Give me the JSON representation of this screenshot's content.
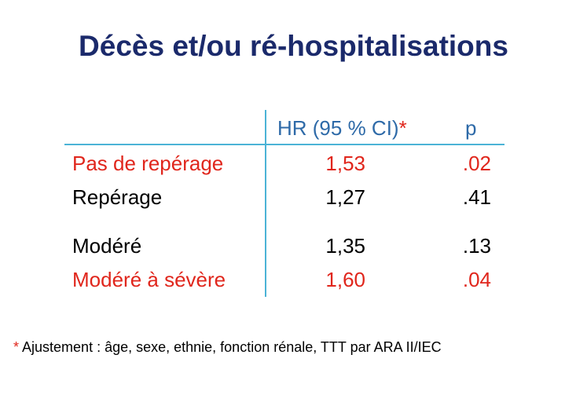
{
  "title": "Décès et/ou ré-hospitalisations",
  "table": {
    "headers": {
      "hr": "HR (95 % CI)",
      "hr_marker": "*",
      "p": "p"
    },
    "rows": [
      {
        "label": "Pas de repérage",
        "hr": "1,53",
        "p": ".02",
        "highlight": true
      },
      {
        "label": "Repérage",
        "hr": "1,27",
        "p": ".41",
        "highlight": false
      },
      {
        "label": "Modéré",
        "hr": "1,35",
        "p": ".13",
        "highlight": false
      },
      {
        "label": "Modéré à sévère",
        "hr": "1,60",
        "p": ".04",
        "highlight": true
      }
    ]
  },
  "footnote": {
    "marker": "*",
    "text": " Ajustement : âge, sexe, ethnie, fonction rénale, TTT par ARA II/IEC"
  },
  "colors": {
    "title": "#1b2a6b",
    "header": "#2e6aa8",
    "highlight": "#e0261c",
    "rule": "#4bb3d6"
  }
}
